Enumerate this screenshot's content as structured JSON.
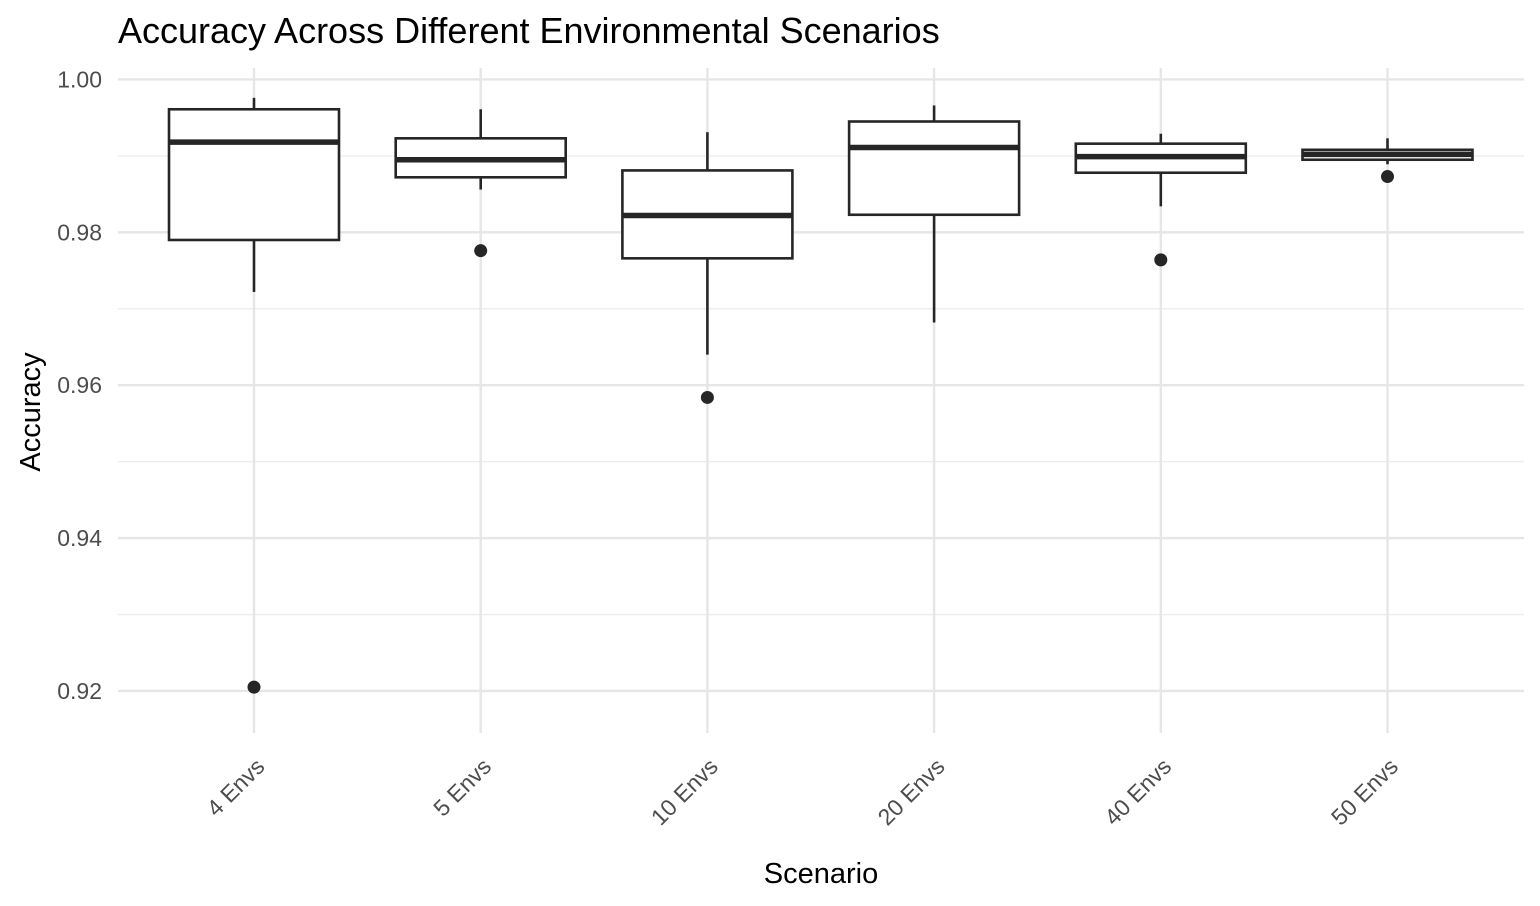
{
  "chart_data": {
    "type": "box",
    "title": "Accuracy Across Different Environmental Scenarios",
    "xlabel": "Scenario",
    "ylabel": "Accuracy",
    "ylim": [
      0.9145,
      1.0015
    ],
    "yticks": [
      0.92,
      0.94,
      0.96,
      0.98,
      1.0
    ],
    "ytick_labels": [
      "0.92",
      "0.94",
      "0.96",
      "0.98",
      "1.00"
    ],
    "y_minor_ticks": [
      0.93,
      0.95,
      0.97,
      0.99
    ],
    "grid": true,
    "categories": [
      "4 Envs",
      "5 Envs",
      "10 Envs",
      "20 Envs",
      "40 Envs",
      "50 Envs"
    ],
    "boxes": [
      {
        "category": "4 Envs",
        "whisker_low": 0.9722,
        "q1": 0.979,
        "median": 0.9918,
        "q3": 0.9961,
        "whisker_high": 0.9976,
        "outliers": [
          0.9205
        ]
      },
      {
        "category": "5 Envs",
        "whisker_low": 0.9856,
        "q1": 0.9872,
        "median": 0.9895,
        "q3": 0.9923,
        "whisker_high": 0.9961,
        "outliers": [
          0.9776
        ]
      },
      {
        "category": "10 Envs",
        "whisker_low": 0.964,
        "q1": 0.9766,
        "median": 0.9822,
        "q3": 0.9881,
        "whisker_high": 0.9931,
        "outliers": [
          0.9584
        ]
      },
      {
        "category": "20 Envs",
        "whisker_low": 0.9682,
        "q1": 0.9823,
        "median": 0.9911,
        "q3": 0.9945,
        "whisker_high": 0.9966,
        "outliers": []
      },
      {
        "category": "40 Envs",
        "whisker_low": 0.9834,
        "q1": 0.9878,
        "median": 0.9899,
        "q3": 0.9916,
        "whisker_high": 0.9929,
        "outliers": [
          0.9764
        ]
      },
      {
        "category": "50 Envs",
        "whisker_low": 0.9889,
        "q1": 0.9895,
        "median": 0.9902,
        "q3": 0.9908,
        "whisker_high": 0.9923,
        "outliers": [
          0.9873
        ]
      }
    ],
    "colors": {
      "box_stroke": "#262626",
      "box_fill": "#ffffff",
      "outlier": "#262626",
      "grid": "#e6e6e6"
    }
  }
}
